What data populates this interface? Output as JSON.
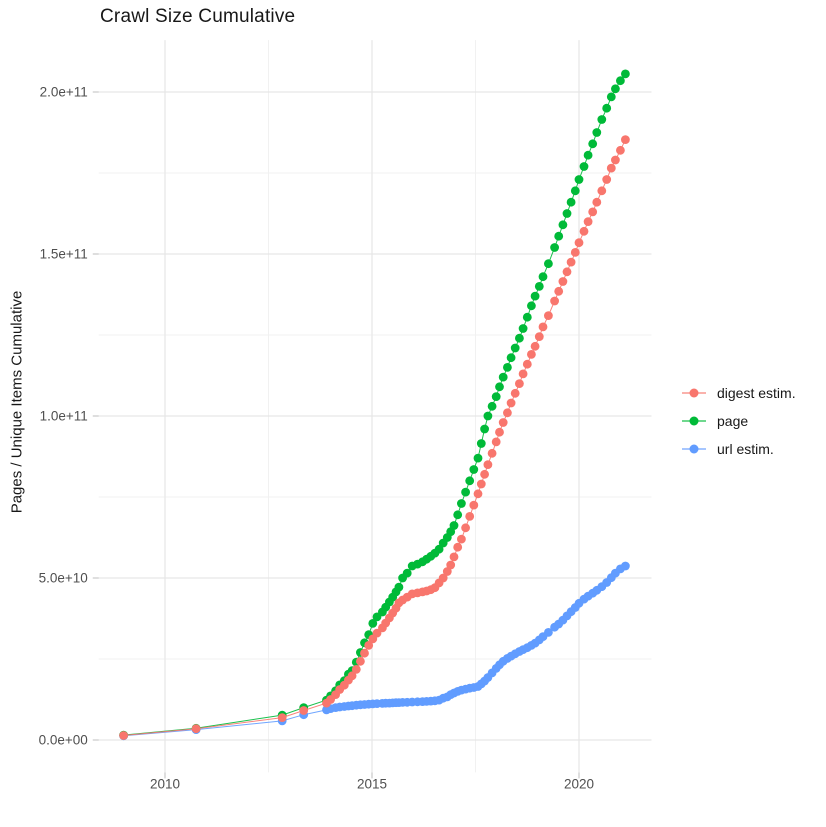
{
  "title": "Crawl Size Cumulative",
  "y_axis_title": "Pages / Unique Items Cumulative",
  "legend": {
    "items": [
      {
        "label": "digest estim.",
        "color": "#F8766D"
      },
      {
        "label": "page",
        "color": "#00BA38"
      },
      {
        "label": "url estim.",
        "color": "#619CFF"
      }
    ]
  },
  "colors": {
    "digest": "#F8766D",
    "page": "#00BA38",
    "url": "#619CFF",
    "grid_major": "#E7E7E7",
    "grid_minor": "#F1F1F1",
    "tick_mark": "#C9C9C9",
    "axis_text": "#4F4F4F",
    "title_text": "#181818",
    "background": "#FFFFFF"
  },
  "chart_data": {
    "type": "line",
    "title": "Crawl Size Cumulative",
    "xlabel": "",
    "ylabel": "Pages / Unique Items Cumulative",
    "values_unit": "billions (1e9) of pages / unique items",
    "xlim": [
      2008.4,
      2021.75
    ],
    "ylim_e9": [
      -10,
      216
    ],
    "grid": true,
    "legend_position": "right",
    "x_ticks": [
      {
        "label": "2010",
        "year": 2010
      },
      {
        "label": "2015",
        "year": 2015
      },
      {
        "label": "2020",
        "year": 2020
      }
    ],
    "x_minor": [
      2012.5,
      2017.5
    ],
    "y_ticks": [
      {
        "label": "0.0e+00",
        "value_e9": 0
      },
      {
        "label": "5.0e+10",
        "value_e9": 50
      },
      {
        "label": "1.0e+11",
        "value_e9": 100
      },
      {
        "label": "1.5e+11",
        "value_e9": 150
      },
      {
        "label": "2.0e+11",
        "value_e9": 200
      }
    ],
    "y_minor": [
      25,
      75,
      125,
      175
    ],
    "series": [
      {
        "name": "digest estim.",
        "color": "#F8766D",
        "points": [
          [
            2009.0,
            1.4
          ],
          [
            2010.75,
            3.5
          ],
          [
            2012.83,
            6.9
          ],
          [
            2013.35,
            9.1
          ],
          [
            2013.9,
            11.4
          ],
          [
            2014.0,
            12.5
          ],
          [
            2014.12,
            14.0
          ],
          [
            2014.22,
            15.6
          ],
          [
            2014.33,
            16.9
          ],
          [
            2014.43,
            18.5
          ],
          [
            2014.52,
            19.8
          ],
          [
            2014.62,
            21.8
          ],
          [
            2014.72,
            24.3
          ],
          [
            2014.82,
            26.8
          ],
          [
            2014.92,
            29.2
          ],
          [
            2015.02,
            31.2
          ],
          [
            2015.12,
            33.0
          ],
          [
            2015.25,
            34.6
          ],
          [
            2015.33,
            36.1
          ],
          [
            2015.42,
            37.7
          ],
          [
            2015.5,
            39.2
          ],
          [
            2015.58,
            40.7
          ],
          [
            2015.65,
            42.3
          ],
          [
            2015.74,
            43.2
          ],
          [
            2015.85,
            44.1
          ],
          [
            2015.97,
            45.1
          ],
          [
            2016.1,
            45.4
          ],
          [
            2016.22,
            45.7
          ],
          [
            2016.32,
            46.0
          ],
          [
            2016.42,
            46.4
          ],
          [
            2016.52,
            47.0
          ],
          [
            2016.62,
            48.5
          ],
          [
            2016.72,
            50.0
          ],
          [
            2016.82,
            52.0
          ],
          [
            2016.9,
            54.0
          ],
          [
            2016.98,
            56.5
          ],
          [
            2017.07,
            59.5
          ],
          [
            2017.16,
            62.0
          ],
          [
            2017.26,
            65.5
          ],
          [
            2017.36,
            69.0
          ],
          [
            2017.46,
            72.5
          ],
          [
            2017.56,
            76.0
          ],
          [
            2017.64,
            79.0
          ],
          [
            2017.72,
            82.0
          ],
          [
            2017.8,
            85.0
          ],
          [
            2017.9,
            88.5
          ],
          [
            2018.0,
            92.0
          ],
          [
            2018.08,
            95.0
          ],
          [
            2018.17,
            98.0
          ],
          [
            2018.27,
            101.0
          ],
          [
            2018.36,
            104.0
          ],
          [
            2018.46,
            107.0
          ],
          [
            2018.56,
            110.0
          ],
          [
            2018.65,
            113.0
          ],
          [
            2018.75,
            116.0
          ],
          [
            2018.85,
            119.0
          ],
          [
            2018.94,
            121.5
          ],
          [
            2019.04,
            124.5
          ],
          [
            2019.13,
            127.5
          ],
          [
            2019.26,
            131.0
          ],
          [
            2019.41,
            135.5
          ],
          [
            2019.51,
            138.5
          ],
          [
            2019.61,
            141.5
          ],
          [
            2019.71,
            144.5
          ],
          [
            2019.81,
            147.5
          ],
          [
            2019.91,
            150.5
          ],
          [
            2020.0,
            153.5
          ],
          [
            2020.12,
            157.0
          ],
          [
            2020.22,
            160.0
          ],
          [
            2020.33,
            163.0
          ],
          [
            2020.43,
            166.0
          ],
          [
            2020.55,
            169.5
          ],
          [
            2020.67,
            173.0
          ],
          [
            2020.78,
            176.5
          ],
          [
            2020.88,
            179.0
          ],
          [
            2021.0,
            182.0
          ],
          [
            2021.12,
            185.3
          ]
        ]
      },
      {
        "name": "page",
        "color": "#00BA38",
        "points": [
          [
            2009.0,
            1.5
          ],
          [
            2010.75,
            3.6
          ],
          [
            2012.83,
            7.7
          ],
          [
            2013.35,
            10.0
          ],
          [
            2013.9,
            12.3
          ],
          [
            2014.0,
            13.6
          ],
          [
            2014.12,
            15.2
          ],
          [
            2014.22,
            17.0
          ],
          [
            2014.33,
            18.3
          ],
          [
            2014.43,
            20.3
          ],
          [
            2014.52,
            21.4
          ],
          [
            2014.62,
            24.0
          ],
          [
            2014.72,
            27.0
          ],
          [
            2014.82,
            30.0
          ],
          [
            2014.92,
            32.5
          ],
          [
            2015.02,
            36.0
          ],
          [
            2015.12,
            38.0
          ],
          [
            2015.25,
            39.5
          ],
          [
            2015.33,
            41.0
          ],
          [
            2015.42,
            42.6
          ],
          [
            2015.5,
            44.1
          ],
          [
            2015.58,
            45.7
          ],
          [
            2015.65,
            47.2
          ],
          [
            2015.74,
            50.0
          ],
          [
            2015.85,
            51.5
          ],
          [
            2015.97,
            53.7
          ],
          [
            2016.1,
            54.3
          ],
          [
            2016.22,
            55.0
          ],
          [
            2016.32,
            55.8
          ],
          [
            2016.42,
            56.7
          ],
          [
            2016.52,
            57.7
          ],
          [
            2016.62,
            58.9
          ],
          [
            2016.72,
            60.8
          ],
          [
            2016.82,
            62.5
          ],
          [
            2016.9,
            64.3
          ],
          [
            2016.98,
            66.2
          ],
          [
            2017.07,
            69.5
          ],
          [
            2017.16,
            73.0
          ],
          [
            2017.26,
            76.5
          ],
          [
            2017.36,
            80.0
          ],
          [
            2017.46,
            83.5
          ],
          [
            2017.56,
            87.0
          ],
          [
            2017.64,
            91.5
          ],
          [
            2017.72,
            96.0
          ],
          [
            2017.8,
            100.0
          ],
          [
            2017.9,
            103.0
          ],
          [
            2018.0,
            106.0
          ],
          [
            2018.08,
            109.0
          ],
          [
            2018.17,
            112.0
          ],
          [
            2018.27,
            115.0
          ],
          [
            2018.36,
            118.0
          ],
          [
            2018.46,
            121.0
          ],
          [
            2018.56,
            124.0
          ],
          [
            2018.65,
            127.0
          ],
          [
            2018.75,
            130.5
          ],
          [
            2018.85,
            134.0
          ],
          [
            2018.94,
            137.0
          ],
          [
            2019.04,
            140.0
          ],
          [
            2019.13,
            143.0
          ],
          [
            2019.26,
            147.0
          ],
          [
            2019.41,
            152.0
          ],
          [
            2019.51,
            155.5
          ],
          [
            2019.61,
            159.0
          ],
          [
            2019.71,
            162.5
          ],
          [
            2019.81,
            166.0
          ],
          [
            2019.91,
            169.5
          ],
          [
            2020.0,
            173.0
          ],
          [
            2020.12,
            177.0
          ],
          [
            2020.22,
            180.5
          ],
          [
            2020.33,
            184.0
          ],
          [
            2020.43,
            187.5
          ],
          [
            2020.55,
            191.5
          ],
          [
            2020.67,
            195.0
          ],
          [
            2020.78,
            198.5
          ],
          [
            2020.88,
            201.0
          ],
          [
            2021.0,
            203.5
          ],
          [
            2021.12,
            205.6
          ]
        ]
      },
      {
        "name": "url estim.",
        "color": "#619CFF",
        "points": [
          [
            2009.0,
            1.3
          ],
          [
            2010.75,
            3.2
          ],
          [
            2012.83,
            5.9
          ],
          [
            2013.35,
            7.8
          ],
          [
            2013.9,
            9.3
          ],
          [
            2014.0,
            9.7
          ],
          [
            2014.12,
            10.0
          ],
          [
            2014.22,
            10.2
          ],
          [
            2014.33,
            10.35
          ],
          [
            2014.43,
            10.5
          ],
          [
            2014.52,
            10.6
          ],
          [
            2014.62,
            10.75
          ],
          [
            2014.72,
            10.85
          ],
          [
            2014.82,
            10.95
          ],
          [
            2014.92,
            11.05
          ],
          [
            2015.02,
            11.15
          ],
          [
            2015.12,
            11.22
          ],
          [
            2015.25,
            11.3
          ],
          [
            2015.33,
            11.35
          ],
          [
            2015.42,
            11.4
          ],
          [
            2015.5,
            11.45
          ],
          [
            2015.58,
            11.5
          ],
          [
            2015.65,
            11.55
          ],
          [
            2015.74,
            11.6
          ],
          [
            2015.85,
            11.65
          ],
          [
            2015.97,
            11.72
          ],
          [
            2016.1,
            11.8
          ],
          [
            2016.22,
            11.85
          ],
          [
            2016.32,
            11.9
          ],
          [
            2016.42,
            12.0
          ],
          [
            2016.52,
            12.1
          ],
          [
            2016.62,
            12.3
          ],
          [
            2016.72,
            12.9
          ],
          [
            2016.82,
            13.3
          ],
          [
            2016.9,
            14.0
          ],
          [
            2016.98,
            14.5
          ],
          [
            2017.07,
            15.0
          ],
          [
            2017.16,
            15.4
          ],
          [
            2017.26,
            15.7
          ],
          [
            2017.36,
            16.0
          ],
          [
            2017.46,
            16.2
          ],
          [
            2017.56,
            16.5
          ],
          [
            2017.64,
            17.3
          ],
          [
            2017.72,
            18.2
          ],
          [
            2017.8,
            19.3
          ],
          [
            2017.9,
            20.7
          ],
          [
            2018.0,
            22.1
          ],
          [
            2018.08,
            23.2
          ],
          [
            2018.17,
            24.3
          ],
          [
            2018.27,
            25.2
          ],
          [
            2018.36,
            25.9
          ],
          [
            2018.46,
            26.6
          ],
          [
            2018.56,
            27.3
          ],
          [
            2018.65,
            27.9
          ],
          [
            2018.75,
            28.5
          ],
          [
            2018.85,
            29.2
          ],
          [
            2018.94,
            29.9
          ],
          [
            2019.04,
            30.9
          ],
          [
            2019.13,
            31.9
          ],
          [
            2019.26,
            33.2
          ],
          [
            2019.41,
            34.8
          ],
          [
            2019.51,
            35.8
          ],
          [
            2019.61,
            37.0
          ],
          [
            2019.71,
            38.3
          ],
          [
            2019.81,
            39.6
          ],
          [
            2019.91,
            40.9
          ],
          [
            2020.0,
            42.2
          ],
          [
            2020.12,
            43.5
          ],
          [
            2020.22,
            44.4
          ],
          [
            2020.33,
            45.3
          ],
          [
            2020.43,
            46.2
          ],
          [
            2020.55,
            47.3
          ],
          [
            2020.67,
            48.6
          ],
          [
            2020.78,
            50.1
          ],
          [
            2020.88,
            51.5
          ],
          [
            2021.0,
            52.8
          ],
          [
            2021.12,
            53.7
          ]
        ]
      }
    ]
  }
}
